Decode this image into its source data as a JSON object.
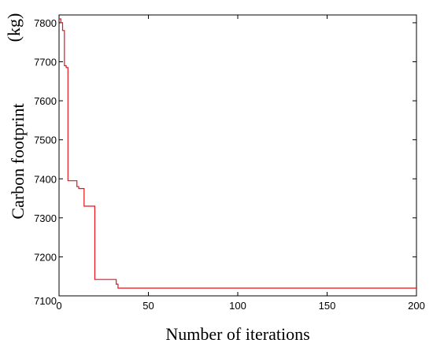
{
  "chart_data": {
    "type": "line",
    "title": "",
    "xlabel": "Number of iterations",
    "ylabel": "Carbon footprint",
    "ylabel_unit": "(kg)",
    "xlim": [
      0,
      200
    ],
    "ylim": [
      7100,
      7820
    ],
    "xticks": [
      0,
      50,
      100,
      150,
      200
    ],
    "yticks": [
      7100,
      7200,
      7300,
      7400,
      7500,
      7600,
      7700,
      7800
    ],
    "grid": false,
    "line_style": "step",
    "series": [
      {
        "color": "#e8131b",
        "x": [
          0,
          1,
          2,
          3,
          4,
          5,
          6,
          9,
          10,
          11,
          13,
          14,
          18,
          19,
          20,
          31,
          32,
          33,
          200
        ],
        "y": [
          7810,
          7800,
          7780,
          7690,
          7685,
          7395,
          7395,
          7395,
          7380,
          7375,
          7375,
          7330,
          7330,
          7330,
          7142,
          7142,
          7130,
          7120,
          7120
        ]
      }
    ]
  }
}
